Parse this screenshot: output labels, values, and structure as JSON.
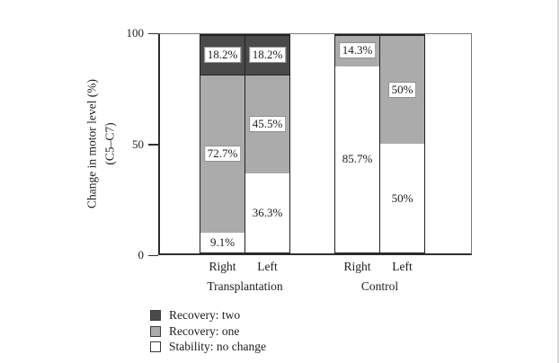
{
  "chart_data": {
    "type": "bar",
    "stacked": true,
    "title": "",
    "ylabel_line1": "Change in motor level (%)",
    "ylabel_line2": "(C5–C7)",
    "ylim": [
      0,
      100
    ],
    "yticks": [
      100,
      50,
      0
    ],
    "grid": false,
    "legend_position": "bottom-left",
    "categories": [
      "Transplantation Right",
      "Transplantation Left",
      "Control Right",
      "Control Left"
    ],
    "series": [
      {
        "name": "Stability: no change",
        "values": [
          9.1,
          36.3,
          85.7,
          50
        ]
      },
      {
        "name": "Recovery: one",
        "values": [
          72.7,
          45.5,
          14.3,
          50
        ]
      },
      {
        "name": "Recovery: two",
        "values": [
          18.2,
          18.2,
          0,
          0
        ]
      }
    ],
    "series_colors": {
      "Stability: no change": "#ffffff",
      "Recovery: one": "#ababab",
      "Recovery: two": "#4a4a4a"
    },
    "groups": [
      {
        "label": "Transplantation",
        "bars": [
          {
            "label": "Right",
            "segments": [
              {
                "series": "Stability: no change",
                "value": 9.1,
                "text": "9.1%"
              },
              {
                "series": "Recovery: one",
                "value": 72.7,
                "text": "72.7%"
              },
              {
                "series": "Recovery: two",
                "value": 18.2,
                "text": "18.2%"
              }
            ]
          },
          {
            "label": "Left",
            "segments": [
              {
                "series": "Stability: no change",
                "value": 36.3,
                "text": "36.3%"
              },
              {
                "series": "Recovery: one",
                "value": 45.5,
                "text": "45.5%"
              },
              {
                "series": "Recovery: two",
                "value": 18.2,
                "text": "18.2%"
              }
            ]
          }
        ]
      },
      {
        "label": "Control",
        "bars": [
          {
            "label": "Right",
            "segments": [
              {
                "series": "Stability: no change",
                "value": 85.7,
                "text": "85.7%"
              },
              {
                "series": "Recovery: one",
                "value": 14.3,
                "text": "14.3%"
              }
            ]
          },
          {
            "label": "Left",
            "segments": [
              {
                "series": "Stability: no change",
                "value": 50,
                "text": "50%"
              },
              {
                "series": "Recovery: one",
                "value": 50,
                "text": "50%"
              }
            ]
          }
        ]
      }
    ],
    "legend": [
      {
        "label": "Recovery: two",
        "color": "#4a4a4a"
      },
      {
        "label": "Recovery: one",
        "color": "#ababab"
      },
      {
        "label": "Stability: no change",
        "color": "#ffffff"
      }
    ]
  }
}
